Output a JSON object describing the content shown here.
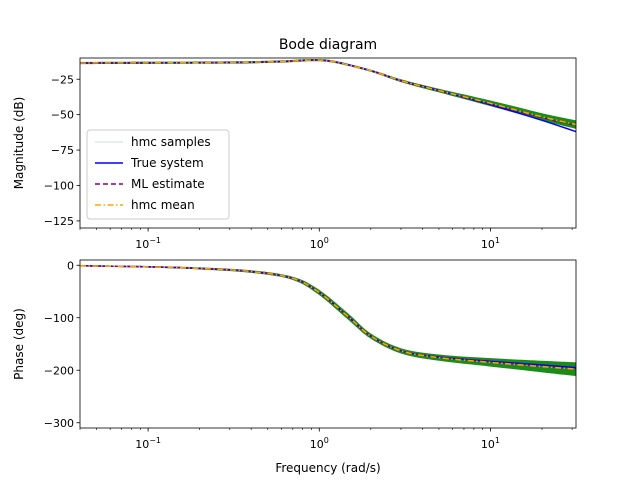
{
  "chart_data": [
    {
      "type": "line",
      "title": "Bode diagram",
      "xlabel": "",
      "ylabel": "Magnitude (dB)",
      "xscale": "log",
      "xlim": [
        0.04,
        31.6
      ],
      "ylim": [
        -130,
        -10
      ],
      "yticks": [
        -25,
        -50,
        -75,
        -100,
        -125
      ],
      "ytick_labels": [
        "−25",
        "−50",
        "−75",
        "−100",
        "−125"
      ],
      "xticks": [
        0.1,
        1,
        10
      ],
      "xtick_labels": [
        {
          "base": "10",
          "exp": "−1"
        },
        {
          "base": "10",
          "exp": "0"
        },
        {
          "base": "10",
          "exp": "1"
        }
      ],
      "grid": false,
      "legend": {
        "placement": "lower-left",
        "entries": [
          {
            "label": "hmc samples",
            "color": "#2e8b57",
            "style": "solid-faint"
          },
          {
            "label": "True system",
            "color": "#0000ff",
            "style": "solid"
          },
          {
            "label": "ML estimate",
            "color": "#800080",
            "style": "dashed"
          },
          {
            "label": "hmc mean",
            "color": "#ffa500",
            "style": "dashdot"
          }
        ]
      },
      "series": [
        {
          "name": "True system",
          "color": "#0000ff",
          "x": [
            0.04,
            0.1,
            0.3,
            0.6,
            0.9,
            1.2,
            2,
            3,
            5,
            10,
            20,
            31.6
          ],
          "y": [
            -13.5,
            -13.4,
            -13.2,
            -12.5,
            -11.5,
            -12.5,
            -19,
            -26,
            -33,
            -43,
            -54,
            -62
          ]
        },
        {
          "name": "ML estimate",
          "color": "#800080",
          "x": [
            0.04,
            0.1,
            0.3,
            0.6,
            0.9,
            1.2,
            2,
            3,
            5,
            10,
            20,
            31.6
          ],
          "y": [
            -13.5,
            -13.4,
            -13.2,
            -12.5,
            -11.5,
            -12.5,
            -19,
            -26,
            -33,
            -42.5,
            -52,
            -57.5
          ]
        },
        {
          "name": "hmc mean",
          "color": "#ffa500",
          "x": [
            0.04,
            0.1,
            0.3,
            0.6,
            0.9,
            1.2,
            2,
            3,
            5,
            10,
            20,
            31.6
          ],
          "y": [
            -13.5,
            -13.4,
            -13.2,
            -12.5,
            -11.5,
            -12.5,
            -19,
            -26,
            -33,
            -42,
            -51.5,
            -57
          ]
        },
        {
          "name": "hmc samples",
          "color": "#008000",
          "x": [
            0.04,
            0.1,
            0.3,
            0.6,
            0.9,
            1.2,
            2,
            3,
            5,
            10,
            20,
            31.6
          ],
          "y_low": [
            -14.3,
            -14.2,
            -14,
            -13.3,
            -12.3,
            -13.3,
            -19.8,
            -27,
            -34.3,
            -44,
            -54,
            -60
          ],
          "y_high": [
            -12.7,
            -12.6,
            -12.4,
            -11.7,
            -10.7,
            -11.7,
            -18.2,
            -25,
            -31.7,
            -40,
            -49,
            -54
          ]
        }
      ]
    },
    {
      "type": "line",
      "title": "",
      "xlabel": "Frequency (rad/s)",
      "ylabel": "Phase (deg)",
      "xscale": "log",
      "xlim": [
        0.04,
        31.6
      ],
      "ylim": [
        -310,
        10
      ],
      "yticks": [
        0,
        -100,
        -200,
        -300
      ],
      "ytick_labels": [
        "0",
        "−100",
        "−200",
        "−300"
      ],
      "xticks": [
        0.1,
        1,
        10
      ],
      "xtick_labels": [
        {
          "base": "10",
          "exp": "−1"
        },
        {
          "base": "10",
          "exp": "0"
        },
        {
          "base": "10",
          "exp": "1"
        }
      ],
      "grid": false,
      "series": [
        {
          "name": "True system",
          "color": "#0000ff",
          "x": [
            0.04,
            0.1,
            0.2,
            0.4,
            0.7,
            1,
            1.5,
            2,
            3,
            5,
            10,
            20,
            31.6
          ],
          "y": [
            -1,
            -3,
            -6,
            -12,
            -25,
            -52,
            -100,
            -135,
            -163,
            -175,
            -183,
            -190,
            -195
          ]
        },
        {
          "name": "ML estimate",
          "color": "#800080",
          "x": [
            0.04,
            0.1,
            0.2,
            0.4,
            0.7,
            1,
            1.5,
            2,
            3,
            5,
            10,
            20,
            31.6
          ],
          "y": [
            -1,
            -3,
            -6,
            -12,
            -25,
            -52,
            -100,
            -135,
            -163,
            -175,
            -184,
            -192,
            -197
          ]
        },
        {
          "name": "hmc mean",
          "color": "#ffa500",
          "x": [
            0.04,
            0.1,
            0.2,
            0.4,
            0.7,
            1,
            1.5,
            2,
            3,
            5,
            10,
            20,
            31.6
          ],
          "y": [
            -1,
            -3,
            -6,
            -12,
            -25,
            -52,
            -100,
            -135,
            -163,
            -176,
            -185,
            -193,
            -198
          ]
        },
        {
          "name": "hmc samples",
          "color": "#008000",
          "x": [
            0.04,
            0.1,
            0.2,
            0.4,
            0.7,
            1,
            1.5,
            2,
            3,
            5,
            10,
            20,
            31.6
          ],
          "y_low": [
            -2.5,
            -4.5,
            -8,
            -14.5,
            -28,
            -57,
            -106,
            -140,
            -168,
            -182,
            -193,
            -204,
            -211
          ],
          "y_high": [
            0.5,
            -1.5,
            -4,
            -9.5,
            -22,
            -47,
            -94,
            -130,
            -158,
            -170,
            -177,
            -182,
            -185
          ]
        }
      ]
    }
  ]
}
